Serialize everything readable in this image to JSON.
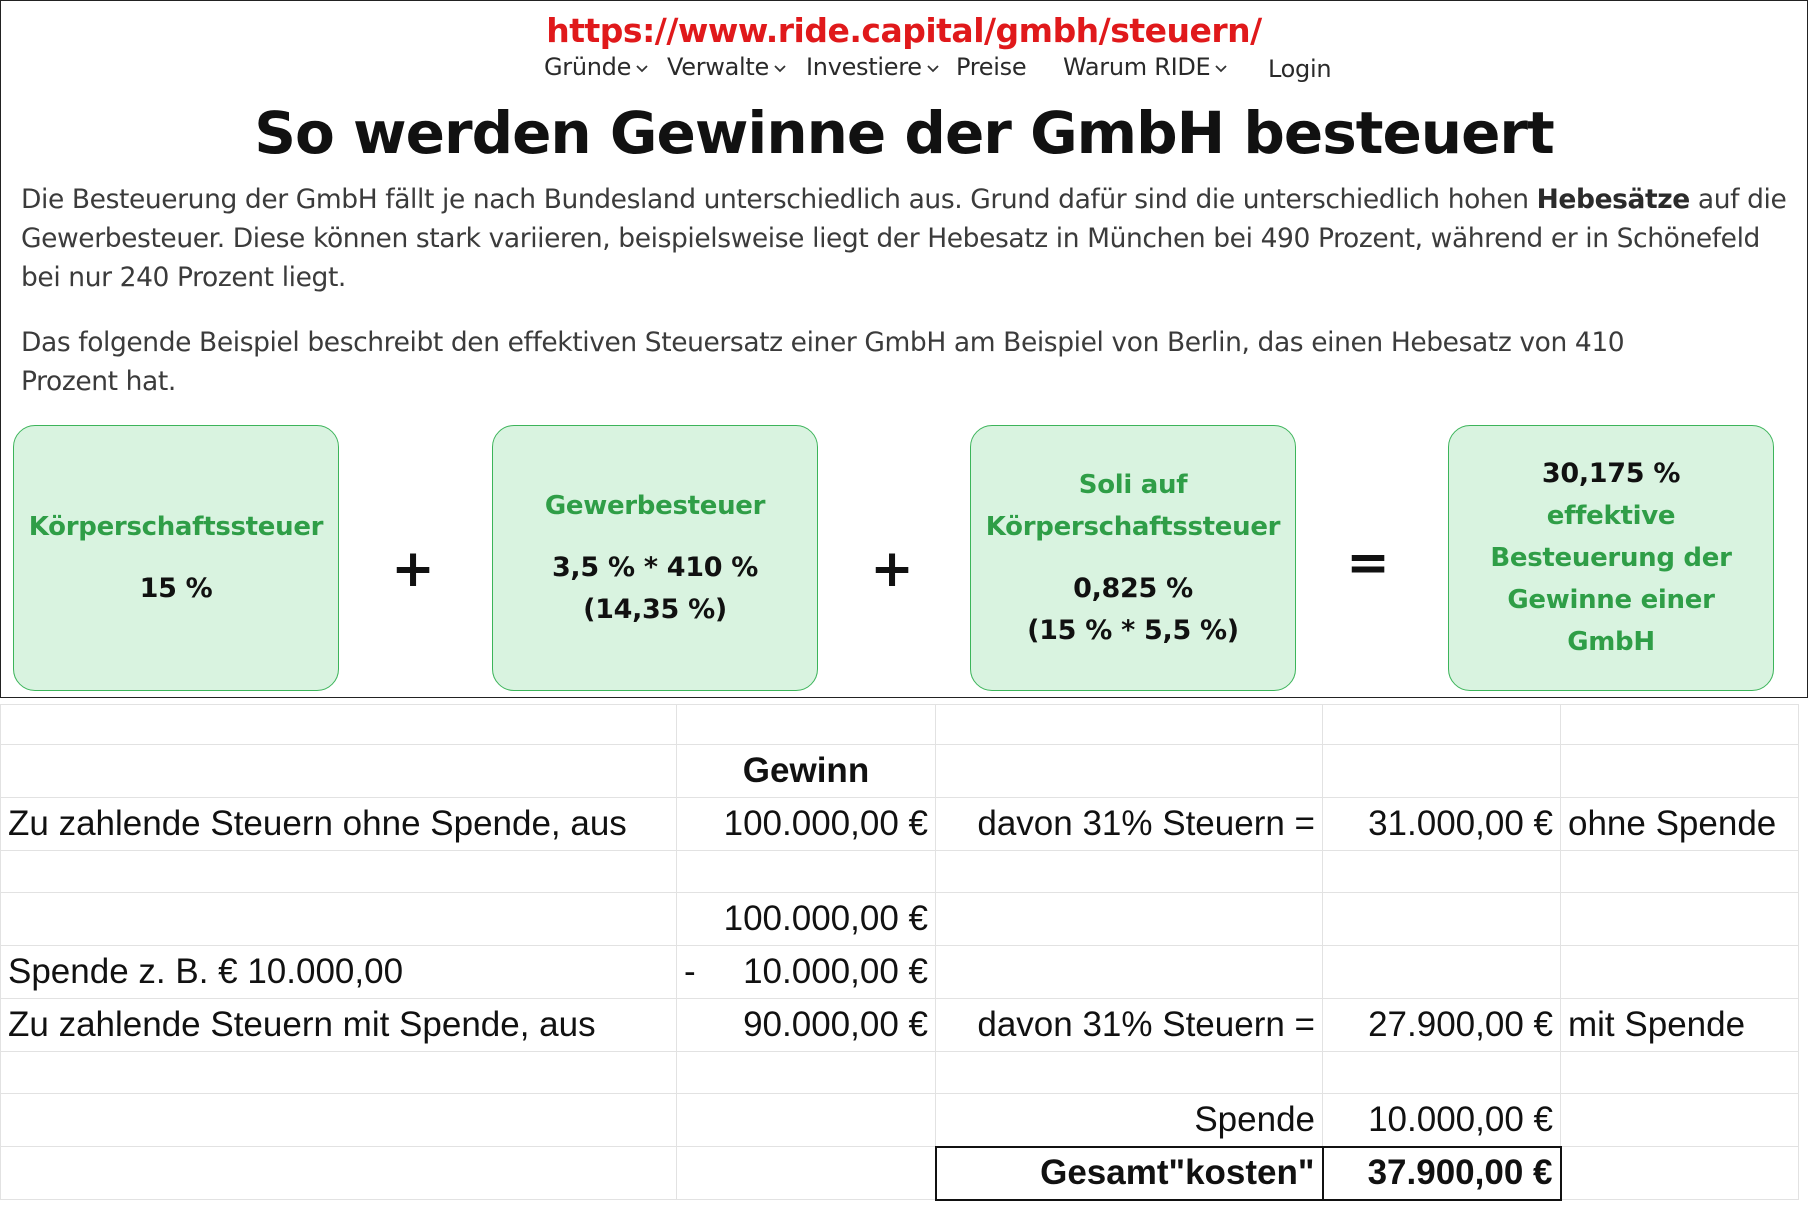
{
  "url": "https://www.ride.capital/gmbh/steuern/",
  "nav": {
    "items": [
      {
        "label": "Gründe",
        "dropdown": true
      },
      {
        "label": "Verwalte",
        "dropdown": true
      },
      {
        "label": "Investiere",
        "dropdown": true
      },
      {
        "label": "Preise",
        "dropdown": false
      },
      {
        "label": "Warum RIDE",
        "dropdown": true
      },
      {
        "label": "Login",
        "dropdown": false
      }
    ]
  },
  "headline": "So werden Gewinne der GmbH besteuert",
  "paragraph1": {
    "before": "Die Besteuerung der GmbH fällt je nach Bundesland unterschiedlich aus. Grund dafür sind die unterschiedlich hohen ",
    "bold": "Hebesätze",
    "after": " auf die Gewerbesteuer. Diese können stark variieren, beispielsweise liegt der Hebesatz in München bei 490 Prozent, während er in Schönefeld bei nur 240 Prozent liegt."
  },
  "paragraph2": "Das folgende Beispiel beschreibt den effektiven Steuersatz einer GmbH am Beispiel von Berlin, das einen Hebesatz von 410 Prozent hat.",
  "boxes": [
    {
      "title": "Körperschaftssteuer",
      "value": "15 %"
    },
    {
      "title": "Gewerbesteuer",
      "value1": "3,5 % * 410 %",
      "value2": "(14,35 %)"
    },
    {
      "title1": "Soli auf",
      "title2": "Körperschaftssteuer",
      "value1": "0,825 %",
      "value2": "(15 % * 5,5 %)"
    },
    {
      "top": "30,175 %",
      "l1": "effektive",
      "l2": "Besteuerung der",
      "l3": "Gewinne einer",
      "l4": "GmbH"
    }
  ],
  "operators": {
    "plus": "+",
    "equals": "="
  },
  "colors": {
    "url_red": "#e0191b",
    "box_green_text": "#2f9e47",
    "box_fill": "#d9f3e0",
    "box_border": "#3cb45a"
  },
  "sheet": {
    "header": "Gewinn",
    "row_no_donation": {
      "label": "Zu zahlende Steuern ohne Spende, aus",
      "amount": "100.000,00 €",
      "formula": "davon 31% Steuern =",
      "tax": "31.000,00 €",
      "note": "ohne Spende"
    },
    "row_gross": {
      "amount": "100.000,00 €"
    },
    "row_donation": {
      "label": "Spende z. B. € 10.000,00",
      "minus": "-",
      "amount": "10.000,00 €"
    },
    "row_with_donation": {
      "label": "Zu zahlende Steuern mit Spende, aus",
      "amount": "90.000,00 €",
      "formula": "davon 31% Steuern =",
      "tax": "27.900,00 €",
      "note": "mit Spende"
    },
    "row_spende": {
      "label": "Spende",
      "value": "10.000,00 €"
    },
    "row_total": {
      "label": "Gesamt\"kosten\"",
      "value": "37.900,00 €"
    }
  }
}
